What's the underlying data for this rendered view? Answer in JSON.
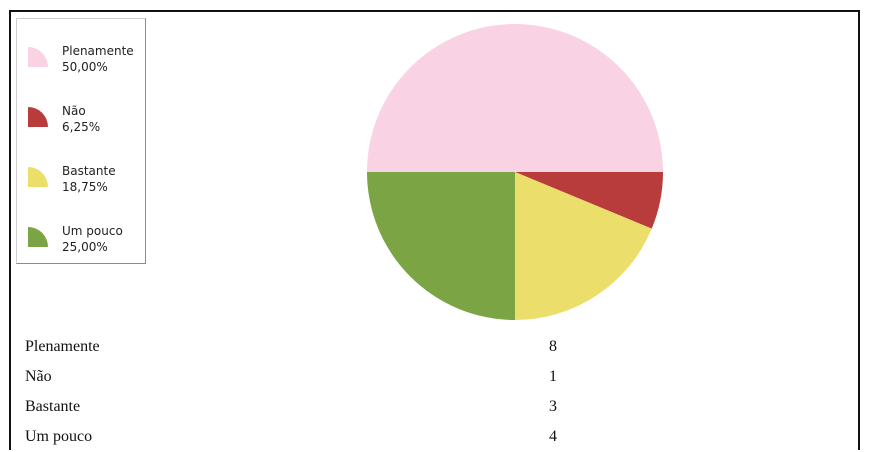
{
  "chart_data": {
    "type": "pie",
    "title": "",
    "start_angle_deg": 90,
    "direction": "clockwise-from-left",
    "slices": [
      {
        "label": "Plenamente",
        "percent_label": "50,00%",
        "value": 8,
        "color": "#f9d2e4"
      },
      {
        "label": "Não",
        "percent_label": "6,25%",
        "value": 1,
        "color": "#b93c3c"
      },
      {
        "label": "Bastante",
        "percent_label": "18,75%",
        "value": 3,
        "color": "#ebde6a"
      },
      {
        "label": "Um pouco",
        "percent_label": "25,00%",
        "value": 4,
        "color": "#7ba444"
      }
    ],
    "legend_position": "top-left"
  },
  "table": {
    "rows": [
      {
        "label": "Plenamente",
        "value": "8"
      },
      {
        "label": "Não",
        "value": "1"
      },
      {
        "label": "Bastante",
        "value": "3"
      },
      {
        "label": "Um pouco",
        "value": "4"
      }
    ]
  }
}
